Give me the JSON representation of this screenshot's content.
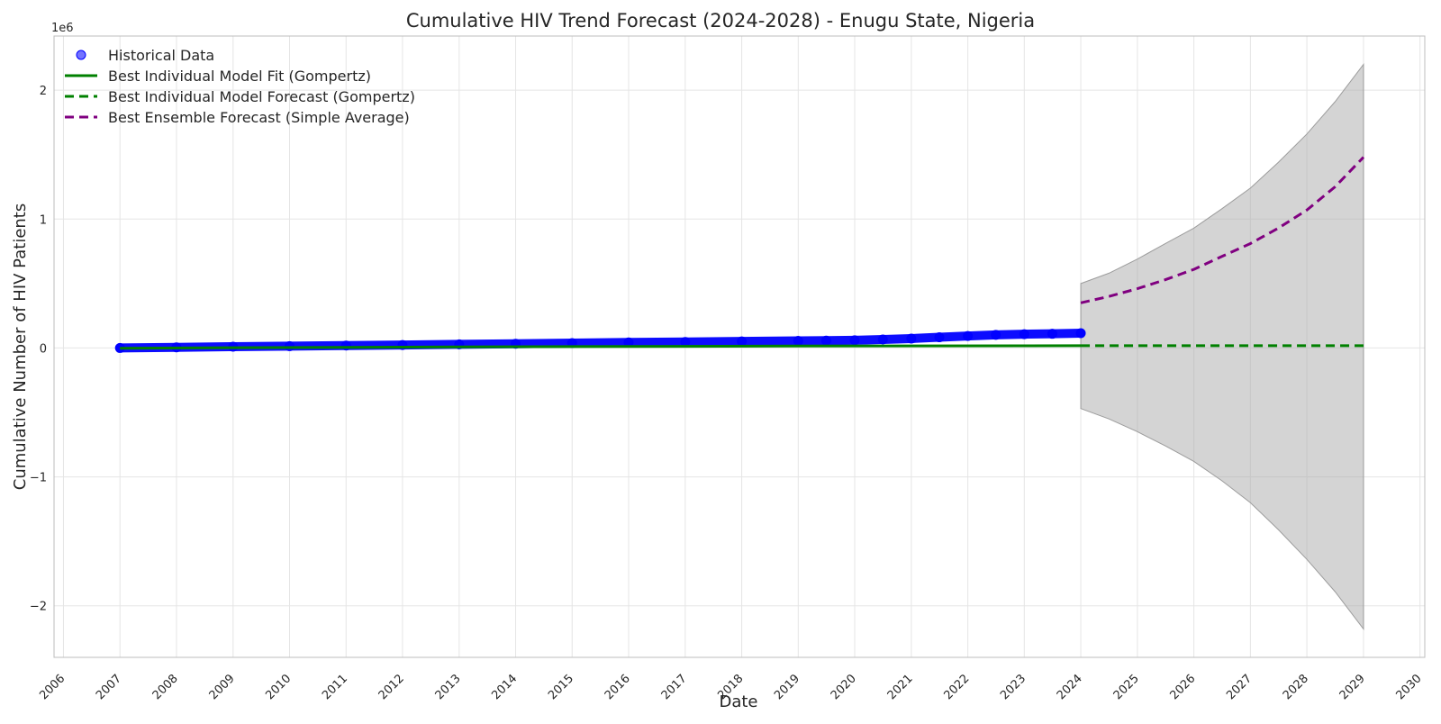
{
  "chart_data": {
    "type": "line",
    "title": "Cumulative HIV Trend Forecast (2024-2028) - Enugu State, Nigeria",
    "xlabel": "Date",
    "ylabel": "Cumulative Number of HIV Patients",
    "y_offset_label": "1e6",
    "xlim": [
      "2005-11-01",
      "2030-02-01"
    ],
    "ylim": [
      -2.4,
      2.42
    ],
    "y_unit_multiplier": 1000000,
    "x_ticks": [
      "2006",
      "2007",
      "2008",
      "2009",
      "2010",
      "2011",
      "2012",
      "2013",
      "2014",
      "2015",
      "2016",
      "2017",
      "2018",
      "2019",
      "2020",
      "2021",
      "2022",
      "2023",
      "2024",
      "2025",
      "2026",
      "2027",
      "2028",
      "2029",
      "2030"
    ],
    "y_ticks": [
      {
        "value": -2,
        "label": "−2"
      },
      {
        "value": -1,
        "label": "−1"
      },
      {
        "value": 0,
        "label": "0"
      },
      {
        "value": 1,
        "label": "1"
      },
      {
        "value": 2,
        "label": "2"
      }
    ],
    "grid": true,
    "legend_position": "top-left",
    "series": [
      {
        "name": "Historical Data",
        "kind": "scatter",
        "color": "#0000ff",
        "x": [
          "2007-01-01",
          "2008-01-01",
          "2009-01-01",
          "2010-01-01",
          "2011-01-01",
          "2012-01-01",
          "2013-01-01",
          "2014-01-01",
          "2015-01-01",
          "2016-01-01",
          "2017-01-01",
          "2018-01-01",
          "2019-01-01",
          "2019-07-01",
          "2020-01-01",
          "2020-07-01",
          "2021-01-01",
          "2021-07-01",
          "2022-01-01",
          "2022-07-01",
          "2023-01-01",
          "2023-07-01",
          "2024-01-01"
        ],
        "y": [
          0.0,
          0.005,
          0.01,
          0.014,
          0.019,
          0.023,
          0.028,
          0.033,
          0.038,
          0.043,
          0.047,
          0.051,
          0.055,
          0.057,
          0.06,
          0.066,
          0.073,
          0.083,
          0.093,
          0.102,
          0.107,
          0.11,
          0.115
        ]
      },
      {
        "name": "Best Individual Model Fit (Gompertz)",
        "kind": "line",
        "style": "solid",
        "color": "#008000",
        "x": [
          "2007-01-01",
          "2009-01-01",
          "2011-01-01",
          "2013-01-01",
          "2015-01-01",
          "2017-01-01",
          "2019-01-01",
          "2021-01-01",
          "2023-01-01",
          "2024-01-01"
        ],
        "y": [
          -0.002,
          0.002,
          0.005,
          0.008,
          0.011,
          0.013,
          0.015,
          0.016,
          0.017,
          0.018
        ]
      },
      {
        "name": "Best Individual Model Forecast (Gompertz)",
        "kind": "line",
        "style": "dashed",
        "color": "#008000",
        "x": [
          "2024-01-01",
          "2025-01-01",
          "2026-01-01",
          "2027-01-01",
          "2028-01-01",
          "2029-01-01"
        ],
        "y": [
          0.018,
          0.018,
          0.018,
          0.018,
          0.018,
          0.018
        ]
      },
      {
        "name": "Best Ensemble Forecast (Simple Average)",
        "kind": "line",
        "style": "dashed",
        "color": "#800080",
        "x": [
          "2024-01-01",
          "2024-07-01",
          "2025-01-01",
          "2025-07-01",
          "2026-01-01",
          "2026-07-01",
          "2027-01-01",
          "2027-07-01",
          "2028-01-01",
          "2028-07-01",
          "2029-01-01"
        ],
        "y": [
          0.35,
          0.4,
          0.46,
          0.53,
          0.61,
          0.71,
          0.81,
          0.93,
          1.07,
          1.25,
          1.48
        ]
      }
    ],
    "band": {
      "kind": "band",
      "color": "#a9a9a9",
      "x": [
        "2024-01-01",
        "2024-07-01",
        "2025-01-01",
        "2025-07-01",
        "2026-01-01",
        "2026-07-01",
        "2027-01-01",
        "2027-07-01",
        "2028-01-01",
        "2028-07-01",
        "2029-01-01"
      ],
      "lower": [
        -0.47,
        -0.55,
        -0.65,
        -0.76,
        -0.88,
        -1.03,
        -1.2,
        -1.41,
        -1.64,
        -1.89,
        -2.18
      ],
      "upper": [
        0.5,
        0.58,
        0.69,
        0.81,
        0.93,
        1.08,
        1.24,
        1.44,
        1.66,
        1.91,
        2.2
      ]
    }
  }
}
